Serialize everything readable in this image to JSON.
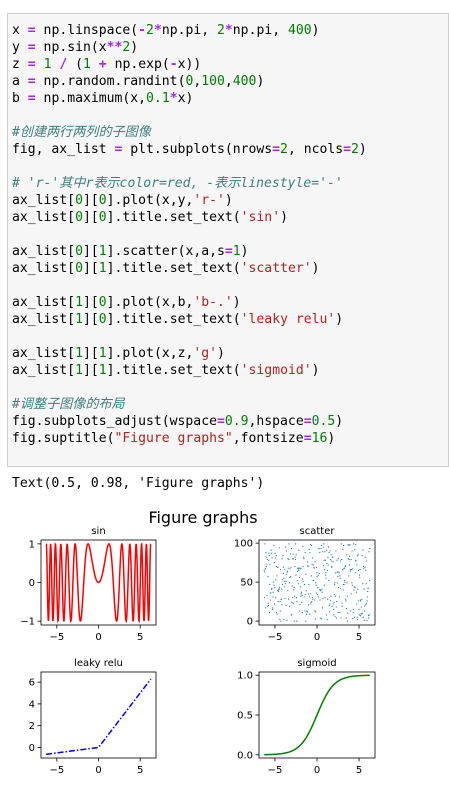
{
  "code_lines": [
    [
      {
        "t": "x "
      },
      {
        "t": "=",
        "c": "kw-op"
      },
      {
        "t": " np.linspace("
      },
      {
        "t": "-",
        "c": "kw-op"
      },
      {
        "t": "2",
        "c": "num"
      },
      {
        "t": "*",
        "c": "kw-op"
      },
      {
        "t": "np.pi, "
      },
      {
        "t": "2",
        "c": "num"
      },
      {
        "t": "*",
        "c": "kw-op"
      },
      {
        "t": "np.pi, "
      },
      {
        "t": "400",
        "c": "num"
      },
      {
        "t": ")"
      }
    ],
    [
      {
        "t": "y "
      },
      {
        "t": "=",
        "c": "kw-op"
      },
      {
        "t": " np.sin(x"
      },
      {
        "t": "**",
        "c": "kw-op"
      },
      {
        "t": "2",
        "c": "num"
      },
      {
        "t": ")"
      }
    ],
    [
      {
        "t": "z "
      },
      {
        "t": "=",
        "c": "kw-op"
      },
      {
        "t": " "
      },
      {
        "t": "1",
        "c": "num"
      },
      {
        "t": " "
      },
      {
        "t": "/",
        "c": "kw-op"
      },
      {
        "t": " ("
      },
      {
        "t": "1",
        "c": "num"
      },
      {
        "t": " "
      },
      {
        "t": "+",
        "c": "kw-op"
      },
      {
        "t": " np.exp("
      },
      {
        "t": "-",
        "c": "kw-op"
      },
      {
        "t": "x))"
      }
    ],
    [
      {
        "t": "a "
      },
      {
        "t": "=",
        "c": "kw-op"
      },
      {
        "t": " np.random.randint("
      },
      {
        "t": "0",
        "c": "num"
      },
      {
        "t": ","
      },
      {
        "t": "100",
        "c": "num"
      },
      {
        "t": ","
      },
      {
        "t": "400",
        "c": "num"
      },
      {
        "t": ")"
      }
    ],
    [
      {
        "t": "b "
      },
      {
        "t": "=",
        "c": "kw-op"
      },
      {
        "t": " np.maximum(x,"
      },
      {
        "t": "0.1",
        "c": "num"
      },
      {
        "t": "*",
        "c": "kw-op"
      },
      {
        "t": "x)"
      }
    ],
    [],
    [
      {
        "t": "#创建两行两列的子图像",
        "c": "cm"
      }
    ],
    [
      {
        "t": "fig, ax_list "
      },
      {
        "t": "=",
        "c": "kw-op"
      },
      {
        "t": " plt.subplots(nrows"
      },
      {
        "t": "=",
        "c": "kw-op"
      },
      {
        "t": "2",
        "c": "num"
      },
      {
        "t": ", ncols"
      },
      {
        "t": "=",
        "c": "kw-op"
      },
      {
        "t": "2",
        "c": "num"
      },
      {
        "t": ")"
      }
    ],
    [],
    [
      {
        "t": "# 'r-'其中r表示color=red, -表示linestyle='-'",
        "c": "cm"
      }
    ],
    [
      {
        "t": "ax_list["
      },
      {
        "t": "0",
        "c": "num"
      },
      {
        "t": "]["
      },
      {
        "t": "0",
        "c": "num"
      },
      {
        "t": "].plot(x,y,"
      },
      {
        "t": "'r-'",
        "c": "str"
      },
      {
        "t": ")"
      }
    ],
    [
      {
        "t": "ax_list["
      },
      {
        "t": "0",
        "c": "num"
      },
      {
        "t": "]["
      },
      {
        "t": "0",
        "c": "num"
      },
      {
        "t": "].title.set_text("
      },
      {
        "t": "'sin'",
        "c": "str"
      },
      {
        "t": ")"
      }
    ],
    [],
    [
      {
        "t": "ax_list["
      },
      {
        "t": "0",
        "c": "num"
      },
      {
        "t": "]["
      },
      {
        "t": "1",
        "c": "num"
      },
      {
        "t": "].scatter(x,a,s"
      },
      {
        "t": "=",
        "c": "kw-op"
      },
      {
        "t": "1",
        "c": "num"
      },
      {
        "t": ")"
      }
    ],
    [
      {
        "t": "ax_list["
      },
      {
        "t": "0",
        "c": "num"
      },
      {
        "t": "]["
      },
      {
        "t": "1",
        "c": "num"
      },
      {
        "t": "].title.set_text("
      },
      {
        "t": "'scatter'",
        "c": "str"
      },
      {
        "t": ")"
      }
    ],
    [],
    [
      {
        "t": "ax_list["
      },
      {
        "t": "1",
        "c": "num"
      },
      {
        "t": "]["
      },
      {
        "t": "0",
        "c": "num"
      },
      {
        "t": "].plot(x,b,"
      },
      {
        "t": "'b-.'",
        "c": "str"
      },
      {
        "t": ")"
      }
    ],
    [
      {
        "t": "ax_list["
      },
      {
        "t": "1",
        "c": "num"
      },
      {
        "t": "]["
      },
      {
        "t": "0",
        "c": "num"
      },
      {
        "t": "].title.set_text("
      },
      {
        "t": "'leaky relu'",
        "c": "str"
      },
      {
        "t": ")"
      }
    ],
    [],
    [
      {
        "t": "ax_list["
      },
      {
        "t": "1",
        "c": "num"
      },
      {
        "t": "]["
      },
      {
        "t": "1",
        "c": "num"
      },
      {
        "t": "].plot(x,z,"
      },
      {
        "t": "'g'",
        "c": "str"
      },
      {
        "t": ")"
      }
    ],
    [
      {
        "t": "ax_list["
      },
      {
        "t": "1",
        "c": "num"
      },
      {
        "t": "]["
      },
      {
        "t": "1",
        "c": "num"
      },
      {
        "t": "].title.set_text("
      },
      {
        "t": "'sigmoid'",
        "c": "str"
      },
      {
        "t": ")"
      }
    ],
    [],
    [
      {
        "t": "#调整子图像的布局",
        "c": "cm"
      }
    ],
    [
      {
        "t": "fig.subplots_adjust(wspace"
      },
      {
        "t": "=",
        "c": "kw-op"
      },
      {
        "t": "0.9",
        "c": "num"
      },
      {
        "t": ",hspace"
      },
      {
        "t": "=",
        "c": "kw-op"
      },
      {
        "t": "0.5",
        "c": "num"
      },
      {
        "t": ")"
      }
    ],
    [
      {
        "t": "fig.suptitle("
      },
      {
        "t": "\"Figure graphs\"",
        "c": "str"
      },
      {
        "t": ",fontsize"
      },
      {
        "t": "=",
        "c": "kw-op"
      },
      {
        "t": "16",
        "c": "num"
      },
      {
        "t": ")"
      }
    ]
  ],
  "output_text": "Text(0.5, 0.98, 'Figure graphs')",
  "figure_title": "Figure graphs",
  "chart_data": [
    {
      "type": "line",
      "title": "sin",
      "function": "sin(x^2)",
      "x_range": [
        -6.283,
        6.283
      ],
      "n_points": 400,
      "color": "#ff0000",
      "linestyle": "solid",
      "xlim": [
        -6.9,
        6.9
      ],
      "ylim": [
        -1.1,
        1.1
      ],
      "xticks": [
        -5,
        0,
        5
      ],
      "yticks": [
        -1,
        0,
        1
      ]
    },
    {
      "type": "scatter",
      "title": "scatter",
      "function": "random integers 0-99",
      "x_range": [
        -6.283,
        6.283
      ],
      "n_points": 400,
      "y_range": [
        0,
        99
      ],
      "marker_size": 1,
      "color": "#1f77b4",
      "xlim": [
        -6.9,
        6.9
      ],
      "ylim": [
        -5,
        104
      ],
      "xticks": [
        -5,
        0,
        5
      ],
      "yticks": [
        0,
        50,
        100
      ]
    },
    {
      "type": "line",
      "title": "leaky relu",
      "function": "max(x, 0.1x)",
      "x_range": [
        -6.283,
        6.283
      ],
      "n_points": 400,
      "color": "#0000ff",
      "linestyle": "dashdot",
      "xlim": [
        -6.9,
        6.9
      ],
      "ylim": [
        -0.97,
        6.93
      ],
      "xticks": [
        -5,
        0,
        5
      ],
      "yticks": [
        0,
        2,
        4,
        6
      ]
    },
    {
      "type": "line",
      "title": "sigmoid",
      "function": "1/(1+exp(-x))",
      "x_range": [
        -6.283,
        6.283
      ],
      "n_points": 400,
      "color": "#008000",
      "linestyle": "solid",
      "xlim": [
        -6.9,
        6.9
      ],
      "ylim": [
        -0.04,
        1.04
      ],
      "xticks": [
        -5,
        0,
        5
      ],
      "yticks": [
        0.0,
        0.5,
        1.0
      ],
      "ytick_labels": [
        "0.0",
        "0.5",
        "1.0"
      ]
    }
  ]
}
